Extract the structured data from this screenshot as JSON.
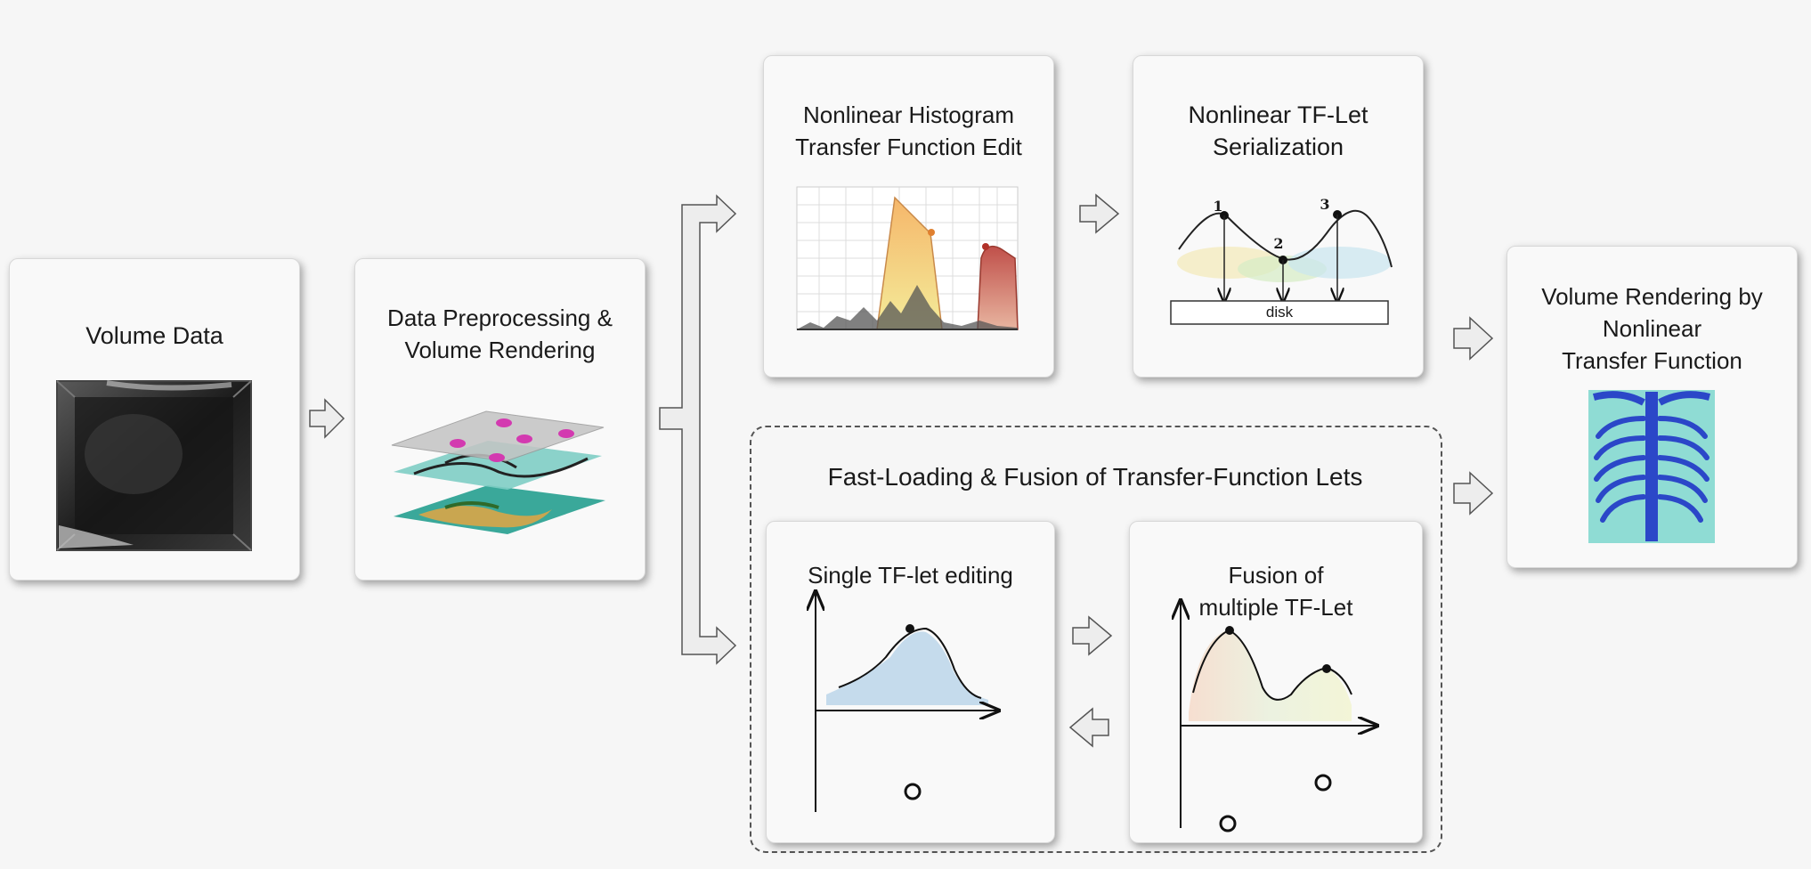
{
  "boxes": {
    "volume_data": "Volume Data",
    "preprocessing": "Data Preprocessing &\nVolume Rendering",
    "histogram": "Nonlinear Histogram\nTransfer Function Edit",
    "serialization": "Nonlinear TF-Let\nSerialization",
    "fusion_group": "Fast-Loading & Fusion of Transfer-Function Lets",
    "single_edit": "Single TF-let editing",
    "fusion_multiple": "Fusion of\nmultiple TF-Let",
    "output": "Volume Rendering by\nNonlinear\nTransfer Function"
  },
  "serialization_figure": {
    "points": [
      "1",
      "2",
      "3"
    ],
    "storage_label": "disk"
  },
  "colors": {
    "background": "#f6f6f6",
    "box_fill": "#f9f9f9",
    "tf_blue": "#bcd6ea",
    "render_blue": "#2b47c8",
    "render_cyan": "#7fd8d2"
  }
}
